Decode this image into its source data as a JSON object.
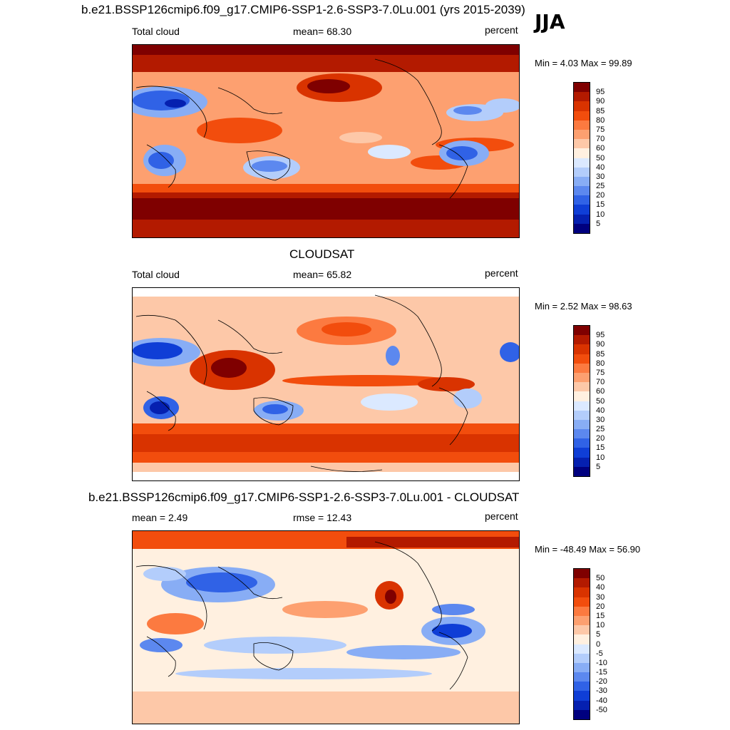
{
  "season": "JJA",
  "units": "percent",
  "land_color": "#000000",
  "panels": [
    {
      "title": "b.e21.BSSP126cmip6.f09_g17.CMIP6-SSP1-2.6-SSP3-7.0Lu.001 (yrs 2015-2039)",
      "left_label": "Total cloud",
      "center_label": "mean=  68.30",
      "right_label": "percent",
      "minmax": "Min =   4.03 Max =  99.89",
      "colorbar": {
        "colors": [
          "#7f0000",
          "#b31a00",
          "#d93300",
          "#f24d0d",
          "#fc7a40",
          "#fda070",
          "#fdc8a8",
          "#fff0e0",
          "#dbe9ff",
          "#b3cdfb",
          "#88adf5",
          "#5c88ef",
          "#3062e6",
          "#0f3ed6",
          "#0520b0",
          "#00007f"
        ],
        "labels": [
          "95",
          "90",
          "85",
          "80",
          "75",
          "70",
          "60",
          "50",
          "40",
          "30",
          "25",
          "20",
          "15",
          "10",
          "5"
        ]
      },
      "field_data": {
        "projection": "cylindrical equidistant",
        "lon_range": [
          0,
          360
        ],
        "lat_range": [
          -90,
          90
        ],
        "features": [
          {
            "region": "Arctic",
            "level": "high",
            "value_range": [
              90,
              100
            ]
          },
          {
            "region": "Southern Ocean storm track",
            "level": "high",
            "value_range": [
              90,
              100
            ]
          },
          {
            "region": "North Pacific",
            "level": "high",
            "value_range": [
              85,
              95
            ]
          },
          {
            "region": "Sahara / Arabia",
            "level": "low",
            "value_range": [
              5,
              25
            ]
          },
          {
            "region": "Australia",
            "level": "low",
            "value_range": [
              20,
              40
            ]
          },
          {
            "region": "Southern Africa",
            "level": "low",
            "value_range": [
              15,
              35
            ]
          },
          {
            "region": "South America interior",
            "level": "low",
            "value_range": [
              20,
              40
            ]
          },
          {
            "region": "Tropical Indian Ocean / Maritime Continent",
            "level": "high",
            "value_range": [
              80,
              90
            ]
          }
        ]
      }
    },
    {
      "title": "CLOUDSAT",
      "left_label": "Total cloud",
      "center_label": "mean=  65.82",
      "right_label": "percent",
      "minmax": "Min =   2.52 Max =  98.63",
      "colorbar": {
        "colors": [
          "#7f0000",
          "#b31a00",
          "#d93300",
          "#f24d0d",
          "#fc7a40",
          "#fda070",
          "#fdc8a8",
          "#fff0e0",
          "#dbe9ff",
          "#b3cdfb",
          "#88adf5",
          "#5c88ef",
          "#3062e6",
          "#0f3ed6",
          "#0520b0",
          "#00007f"
        ],
        "labels": [
          "95",
          "90",
          "85",
          "80",
          "75",
          "70",
          "60",
          "50",
          "40",
          "30",
          "25",
          "20",
          "15",
          "10",
          "5"
        ]
      },
      "field_data": {
        "projection": "cylindrical equidistant",
        "lon_range": [
          0,
          360
        ],
        "lat_range": [
          -82,
          82
        ],
        "features": [
          {
            "region": "Maritime Continent",
            "level": "high",
            "value_range": [
              85,
              98
            ]
          },
          {
            "region": "Southern Ocean",
            "level": "high",
            "value_range": [
              80,
              90
            ]
          },
          {
            "region": "ITCZ Pacific",
            "level": "high",
            "value_range": [
              75,
              85
            ]
          },
          {
            "region": "Sahara / Arabia",
            "level": "low",
            "value_range": [
              5,
              20
            ]
          },
          {
            "region": "Australia",
            "level": "low",
            "value_range": [
              20,
              40
            ]
          },
          {
            "region": "Southern Africa",
            "level": "low",
            "value_range": [
              10,
              30
            ]
          }
        ]
      }
    },
    {
      "title": "b.e21.BSSP126cmip6.f09_g17.CMIP6-SSP1-2.6-SSP3-7.0Lu.001 - CLOUDSAT",
      "left_label": "mean =   2.49",
      "center_label": "rmse =  12.43",
      "right_label": "percent",
      "minmax": "Min = -48.49 Max =  56.90",
      "colorbar": {
        "colors": [
          "#7f0000",
          "#b31a00",
          "#d93300",
          "#f24d0d",
          "#fc7a40",
          "#fda070",
          "#fdc8a8",
          "#fff0e0",
          "#dbe9ff",
          "#b3cdfb",
          "#88adf5",
          "#5c88ef",
          "#3062e6",
          "#0f3ed6",
          "#0520b0",
          "#00007f"
        ],
        "labels": [
          "50",
          "40",
          "30",
          "20",
          "15",
          "10",
          "5",
          "0",
          "-5",
          "-10",
          "-15",
          "-20",
          "-30",
          "-40",
          "-50"
        ]
      },
      "field_data": {
        "projection": "cylindrical equidistant",
        "lon_range": [
          0,
          360
        ],
        "lat_range": [
          -90,
          90
        ],
        "features": [
          {
            "region": "Arctic",
            "level": "positive",
            "value_range": [
              20,
              50
            ]
          },
          {
            "region": "Eastern Pacific stratocumulus",
            "level": "positive",
            "value_range": [
              30,
              57
            ]
          },
          {
            "region": "South Asia / Tibetan Plateau",
            "level": "negative",
            "value_range": [
              -40,
              -15
            ]
          },
          {
            "region": "Amazon",
            "level": "negative",
            "value_range": [
              -40,
              -20
            ]
          },
          {
            "region": "Southern subtropics",
            "level": "negative",
            "value_range": [
              -20,
              -5
            ]
          }
        ]
      }
    }
  ]
}
